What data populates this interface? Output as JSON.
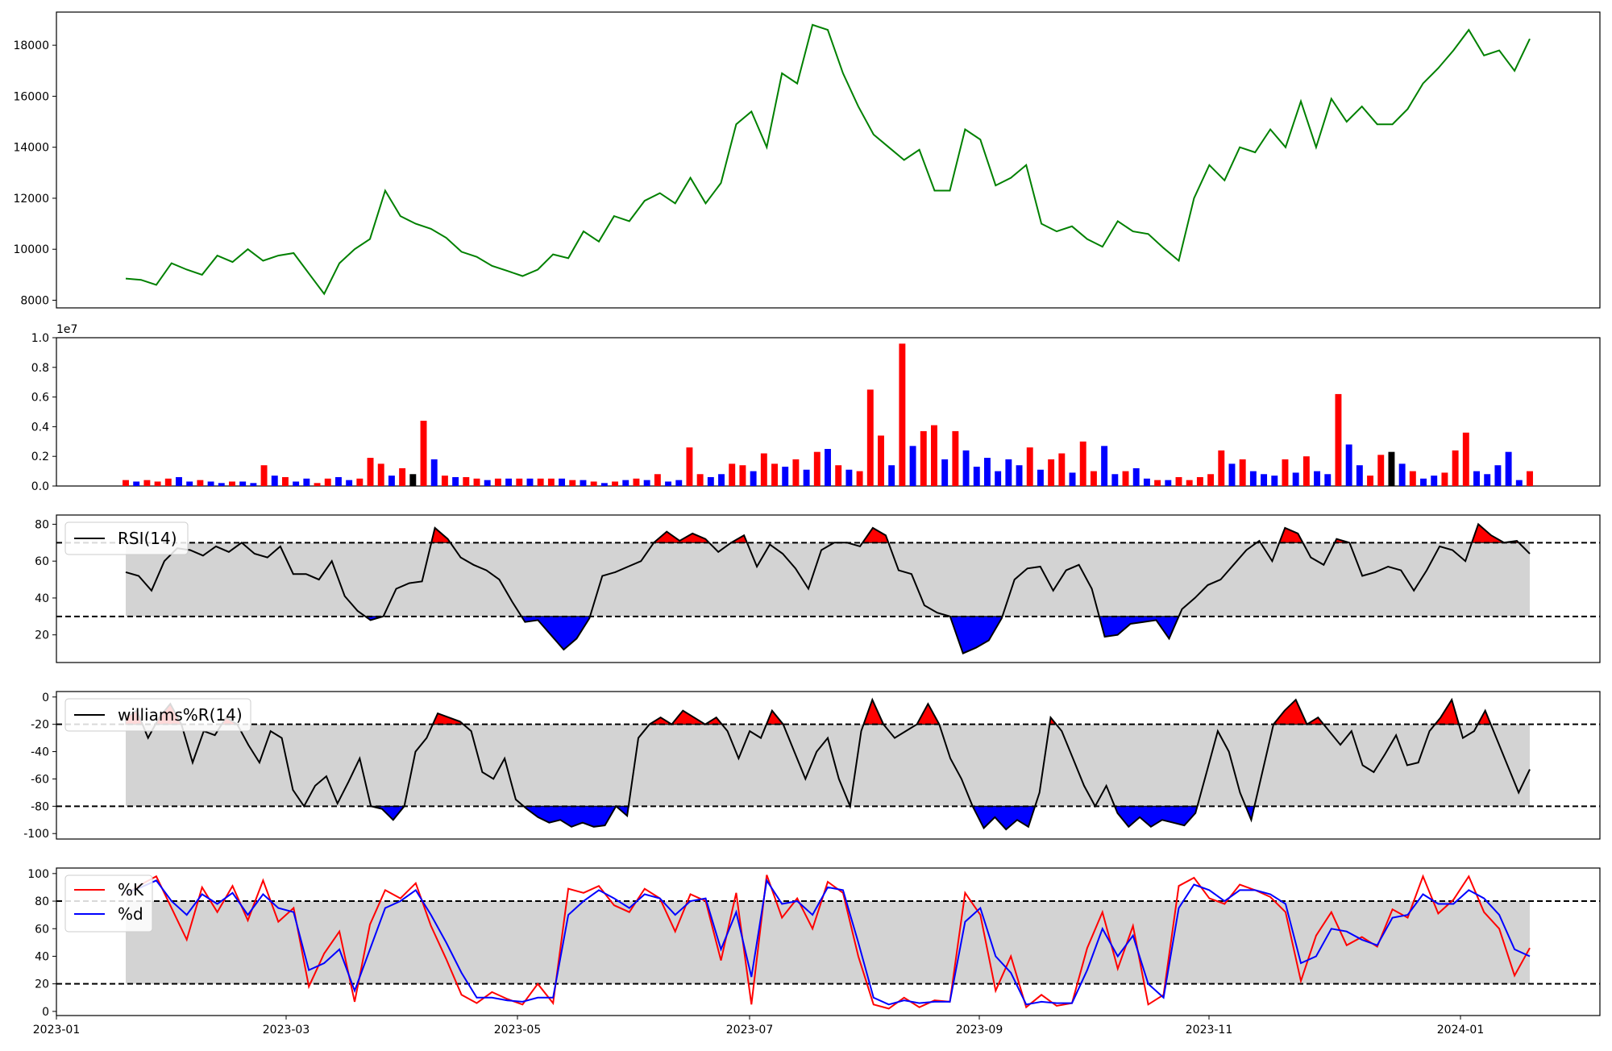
{
  "chart_data": [
    {
      "type": "line",
      "panel": "price",
      "series": [
        {
          "values": [
            8850,
            8800,
            8600,
            9450,
            9200,
            9000,
            9750,
            9500,
            10000,
            9550,
            9750,
            9850,
            9050,
            8250,
            9450,
            10000,
            10400,
            12300,
            11300,
            11000,
            10800,
            10450,
            9900,
            9700,
            9350,
            9150,
            8950,
            9200,
            9800,
            9650,
            10700,
            10300,
            11300,
            11100,
            11900,
            12200,
            11800,
            12800,
            11800,
            12600,
            14900,
            15400,
            14000,
            16900,
            16500,
            18800,
            18600,
            16900,
            15600,
            14500,
            14000,
            13500,
            13900,
            12300,
            12300,
            14700,
            14300,
            12500,
            12800,
            13300,
            11000,
            10700,
            10900,
            10400,
            10100,
            11100,
            10700,
            10600,
            10050,
            9550,
            12000,
            13300,
            12700,
            14000,
            13800,
            14700,
            14000,
            15800,
            14000,
            15900,
            15000,
            15600,
            14900,
            14900,
            15500,
            16500,
            17100,
            17800,
            18600,
            17600,
            17800,
            17000,
            18250
          ],
          "color": "#008000"
        }
      ],
      "ylim": [
        7700,
        19300
      ],
      "yticks": [
        "8000",
        "10000",
        "12000",
        "14000",
        "16000",
        "18000"
      ]
    },
    {
      "type": "bar",
      "panel": "volume",
      "offset_label": "1e7",
      "series": [
        {
          "values": [
            0.04,
            0.03,
            0.04,
            0.03,
            0.05,
            0.06,
            0.03,
            0.04,
            0.03,
            0.02,
            0.03,
            0.03,
            0.02,
            0.14,
            0.07,
            0.06,
            0.03,
            0.05,
            0.02,
            0.05,
            0.06,
            0.04,
            0.05,
            0.19,
            0.15,
            0.07,
            0.12,
            0.08,
            0.44,
            0.18,
            0.07,
            0.06,
            0.06,
            0.05,
            0.04,
            0.05,
            0.05,
            0.05,
            0.05,
            0.05,
            0.05,
            0.05,
            0.04,
            0.04,
            0.03,
            0.02,
            0.03,
            0.04,
            0.05,
            0.04,
            0.08,
            0.03,
            0.04,
            0.26,
            0.08,
            0.06,
            0.08,
            0.15,
            0.14,
            0.1,
            0.22,
            0.15,
            0.13,
            0.18,
            0.11,
            0.23,
            0.25,
            0.14,
            0.11,
            0.1,
            0.65,
            0.34,
            0.14,
            0.96,
            0.27,
            0.37,
            0.41,
            0.18,
            0.37,
            0.24,
            0.13,
            0.19,
            0.1,
            0.18,
            0.14,
            0.26,
            0.11,
            0.18,
            0.22,
            0.09,
            0.3,
            0.1,
            0.27,
            0.08,
            0.1,
            0.12,
            0.05,
            0.04,
            0.04,
            0.06,
            0.04,
            0.06,
            0.08,
            0.24,
            0.15,
            0.18,
            0.1,
            0.08,
            0.07,
            0.18,
            0.09,
            0.2,
            0.1,
            0.08,
            0.62,
            0.28,
            0.14,
            0.07,
            0.21,
            0.23,
            0.15,
            0.1,
            0.05,
            0.07,
            0.09,
            0.24,
            0.36,
            0.1,
            0.08,
            0.14,
            0.23,
            0.04,
            0.1
          ],
          "colors": [
            "red",
            "blue",
            "red",
            "red",
            "red",
            "blue",
            "blue",
            "red",
            "blue",
            "blue",
            "red",
            "blue",
            "blue",
            "red",
            "blue",
            "red",
            "blue",
            "blue",
            "red",
            "red",
            "blue",
            "blue",
            "red",
            "red",
            "red",
            "blue",
            "red",
            "black",
            "red",
            "blue",
            "red",
            "blue",
            "red",
            "red",
            "blue",
            "red",
            "blue",
            "red",
            "blue",
            "red",
            "red",
            "blue",
            "red",
            "blue",
            "red",
            "blue",
            "red",
            "blue",
            "red",
            "blue",
            "red",
            "blue",
            "blue",
            "red",
            "red",
            "blue",
            "blue",
            "red",
            "red",
            "blue",
            "red",
            "red",
            "blue",
            "red",
            "blue",
            "red",
            "blue",
            "red",
            "blue",
            "red",
            "red",
            "red",
            "blue",
            "red",
            "blue",
            "red",
            "red",
            "blue",
            "red",
            "blue",
            "blue",
            "blue",
            "blue",
            "blue",
            "blue",
            "red",
            "blue",
            "red",
            "red",
            "blue",
            "red",
            "red",
            "blue",
            "blue",
            "red",
            "blue",
            "blue",
            "red",
            "blue",
            "red",
            "red",
            "red",
            "red",
            "red",
            "blue",
            "red",
            "blue",
            "blue",
            "blue",
            "red",
            "blue",
            "red",
            "blue",
            "blue",
            "red",
            "blue",
            "blue",
            "red",
            "red",
            "black",
            "blue",
            "red",
            "blue",
            "blue",
            "red",
            "red",
            "red",
            "blue",
            "blue",
            "blue",
            "blue",
            "blue",
            "red"
          ]
        }
      ],
      "ylim": [
        0,
        1.0
      ],
      "yticks": [
        "0.0",
        "0.2",
        "0.4",
        "0.6",
        "0.8",
        "1.0"
      ]
    },
    {
      "type": "line",
      "panel": "rsi",
      "series": [
        {
          "name": "RSI(14)",
          "values": [
            54,
            52,
            44,
            60,
            67,
            66,
            63,
            68,
            65,
            70,
            64,
            62,
            68,
            53,
            53,
            50,
            60,
            41,
            33,
            28,
            30,
            45,
            48,
            49,
            78,
            72,
            62,
            58,
            55,
            50,
            38,
            27,
            28,
            20,
            12,
            18,
            29,
            52,
            54,
            57,
            60,
            70,
            76,
            71,
            75,
            72,
            65,
            70,
            74,
            57,
            69,
            64,
            56,
            45,
            66,
            70,
            70,
            68,
            78,
            74,
            55,
            53,
            36,
            32,
            30,
            10,
            13,
            17,
            29,
            50,
            56,
            57,
            44,
            55,
            58,
            45,
            19,
            20,
            26,
            27,
            28,
            18,
            34,
            40,
            47,
            50,
            58,
            66,
            71,
            60,
            78,
            75,
            62,
            58,
            72,
            70,
            52,
            54,
            57,
            55,
            44,
            55,
            68,
            66,
            60,
            80,
            74,
            70,
            71,
            64
          ]
        }
      ],
      "ylim": [
        5,
        85
      ],
      "yticks": [
        "20",
        "40",
        "60",
        "80"
      ],
      "thresholds": [
        30,
        70
      ],
      "legend": "top-left"
    },
    {
      "type": "line",
      "panel": "williams",
      "series": [
        {
          "name": "williams%R(14)",
          "values": [
            -15,
            -10,
            -30,
            -15,
            -5,
            -20,
            -48,
            -25,
            -28,
            -15,
            -20,
            -35,
            -48,
            -25,
            -30,
            -68,
            -80,
            -65,
            -58,
            -78,
            -62,
            -45,
            -80,
            -82,
            -90,
            -80,
            -40,
            -30,
            -12,
            -15,
            -18,
            -25,
            -55,
            -60,
            -45,
            -75,
            -82,
            -88,
            -92,
            -90,
            -95,
            -92,
            -95,
            -94,
            -80,
            -87,
            -30,
            -20,
            -15,
            -20,
            -10,
            -15,
            -20,
            -15,
            -25,
            -45,
            -25,
            -30,
            -10,
            -20,
            -40,
            -60,
            -40,
            -30,
            -60,
            -80,
            -25,
            -2,
            -20,
            -30,
            -25,
            -20,
            -5,
            -20,
            -45,
            -60,
            -80,
            -96,
            -88,
            -97,
            -90,
            -95,
            -70,
            -15,
            -25,
            -45,
            -65,
            -80,
            -65,
            -85,
            -95,
            -88,
            -95,
            -90,
            -92,
            -94,
            -85,
            -55,
            -25,
            -40,
            -70,
            -90,
            -55,
            -20,
            -10,
            -2,
            -20,
            -15,
            -25,
            -35,
            -25,
            -50,
            -55,
            -42,
            -28,
            -50,
            -48,
            -25,
            -15,
            -2,
            -30,
            -25,
            -10,
            -30,
            -50,
            -70,
            -53
          ]
        }
      ],
      "ylim": [
        -104,
        4
      ],
      "yticks": [
        "-100",
        "-80",
        "-60",
        "-40",
        "-20",
        "0"
      ],
      "thresholds": [
        -80,
        -20
      ],
      "legend": "top-left"
    },
    {
      "type": "line",
      "panel": "stochastic",
      "series": [
        {
          "name": "%K",
          "color": "#ff0000",
          "values": [
            85,
            92,
            98,
            75,
            52,
            90,
            72,
            91,
            66,
            95,
            65,
            75,
            18,
            42,
            58,
            7,
            63,
            88,
            82,
            93,
            62,
            38,
            12,
            6,
            14,
            9,
            5,
            20,
            6,
            89,
            86,
            91,
            77,
            72,
            89,
            82,
            58,
            85,
            80,
            37,
            86,
            5,
            99,
            68,
            82,
            60,
            94,
            86,
            40,
            5,
            2,
            10,
            3,
            8,
            7,
            86,
            70,
            15,
            40,
            3,
            12,
            4,
            6,
            46,
            72,
            31,
            62,
            5,
            12,
            91,
            97,
            82,
            78,
            92,
            88,
            83,
            72,
            22,
            55,
            72,
            48,
            54,
            47,
            74,
            68,
            98,
            71,
            81,
            98,
            72,
            60,
            26,
            46
          ]
        },
        {
          "name": "%d",
          "color": "#0000ff",
          "values": [
            86,
            90,
            95,
            80,
            70,
            85,
            78,
            86,
            70,
            85,
            75,
            72,
            30,
            35,
            45,
            15,
            45,
            75,
            80,
            88,
            70,
            50,
            28,
            10,
            10,
            8,
            7,
            10,
            10,
            70,
            80,
            88,
            82,
            75,
            85,
            82,
            70,
            80,
            82,
            45,
            72,
            25,
            95,
            78,
            80,
            70,
            90,
            88,
            50,
            10,
            5,
            8,
            6,
            7,
            7,
            65,
            75,
            40,
            28,
            5,
            7,
            6,
            6,
            30,
            60,
            40,
            55,
            20,
            10,
            75,
            92,
            88,
            80,
            88,
            88,
            85,
            78,
            35,
            40,
            60,
            58,
            52,
            48,
            68,
            70,
            85,
            78,
            78,
            88,
            82,
            70,
            45,
            40
          ]
        }
      ],
      "ylim": [
        -3,
        104
      ],
      "yticks": [
        "0",
        "20",
        "40",
        "60",
        "80",
        "100"
      ],
      "thresholds": [
        20,
        80
      ],
      "legend": "top-left"
    }
  ],
  "x_axis": {
    "ticks": [
      "2023-01",
      "2023-03",
      "2023-05",
      "2023-07",
      "2023-09",
      "2023-11",
      "2024-01"
    ]
  }
}
